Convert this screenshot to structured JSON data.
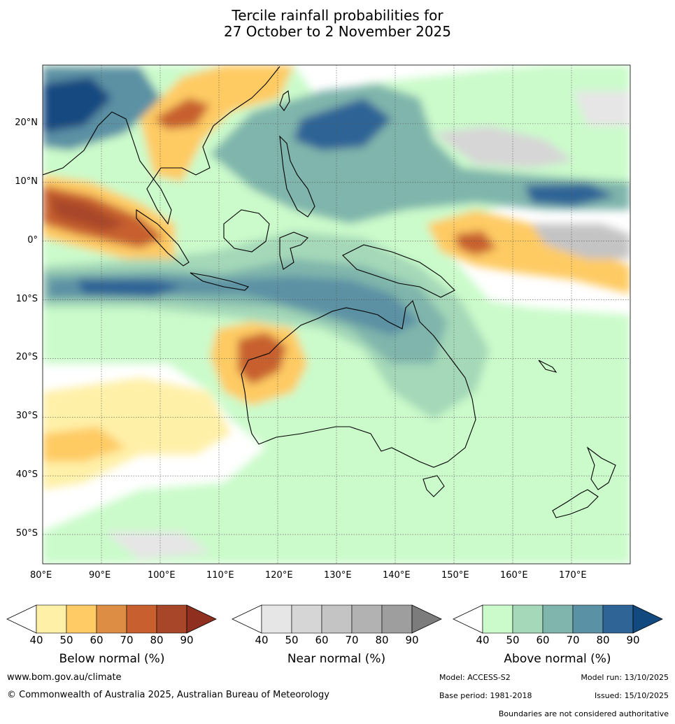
{
  "title": {
    "line1": "Tercile rainfall probabilities for",
    "line2": "27 October to 2 November 2025"
  },
  "map": {
    "lon_range": [
      80,
      180
    ],
    "lat_range": [
      -55,
      30
    ],
    "lon_labels": [
      "80°E",
      "90°E",
      "100°E",
      "110°E",
      "120°E",
      "130°E",
      "140°E",
      "150°E",
      "160°E",
      "170°E"
    ],
    "lat_labels": [
      "20°N",
      "10°N",
      "0°",
      "10°S",
      "20°S",
      "30°S",
      "40°S",
      "50°S"
    ]
  },
  "colorbars": {
    "below": {
      "title": "Below normal (%)",
      "ticks": [
        "40",
        "50",
        "60",
        "70",
        "80",
        "90"
      ],
      "colors": [
        "#fff0a8",
        "#fecb64",
        "#de8e44",
        "#c7602e",
        "#a8462a",
        "#8e2f20"
      ]
    },
    "near": {
      "title": "Near normal (%)",
      "ticks": [
        "40",
        "50",
        "60",
        "70",
        "80",
        "90"
      ],
      "colors": [
        "#e6e6e6",
        "#d6d6d6",
        "#c4c4c4",
        "#b2b2b2",
        "#9e9e9e",
        "#7c7c7c"
      ]
    },
    "above": {
      "title": "Above normal (%)",
      "ticks": [
        "40",
        "50",
        "60",
        "70",
        "80",
        "90"
      ],
      "colors": [
        "#cbfbcb",
        "#a5d8b8",
        "#7fb5ac",
        "#5b91a4",
        "#2f6496",
        "#124a80"
      ]
    }
  },
  "footer": {
    "website": "www.bom.gov.au/climate",
    "copyright": "© Commonwealth of Australia 2025, Australian Bureau of Meteorology",
    "model": "Model: ACCESS-S2",
    "model_run": "Model run: 13/10/2025",
    "base_period": "Base period: 1981-2018",
    "issued": "Issued: 15/10/2025",
    "disclaimer": "Boundaries are not considered authoritative"
  }
}
